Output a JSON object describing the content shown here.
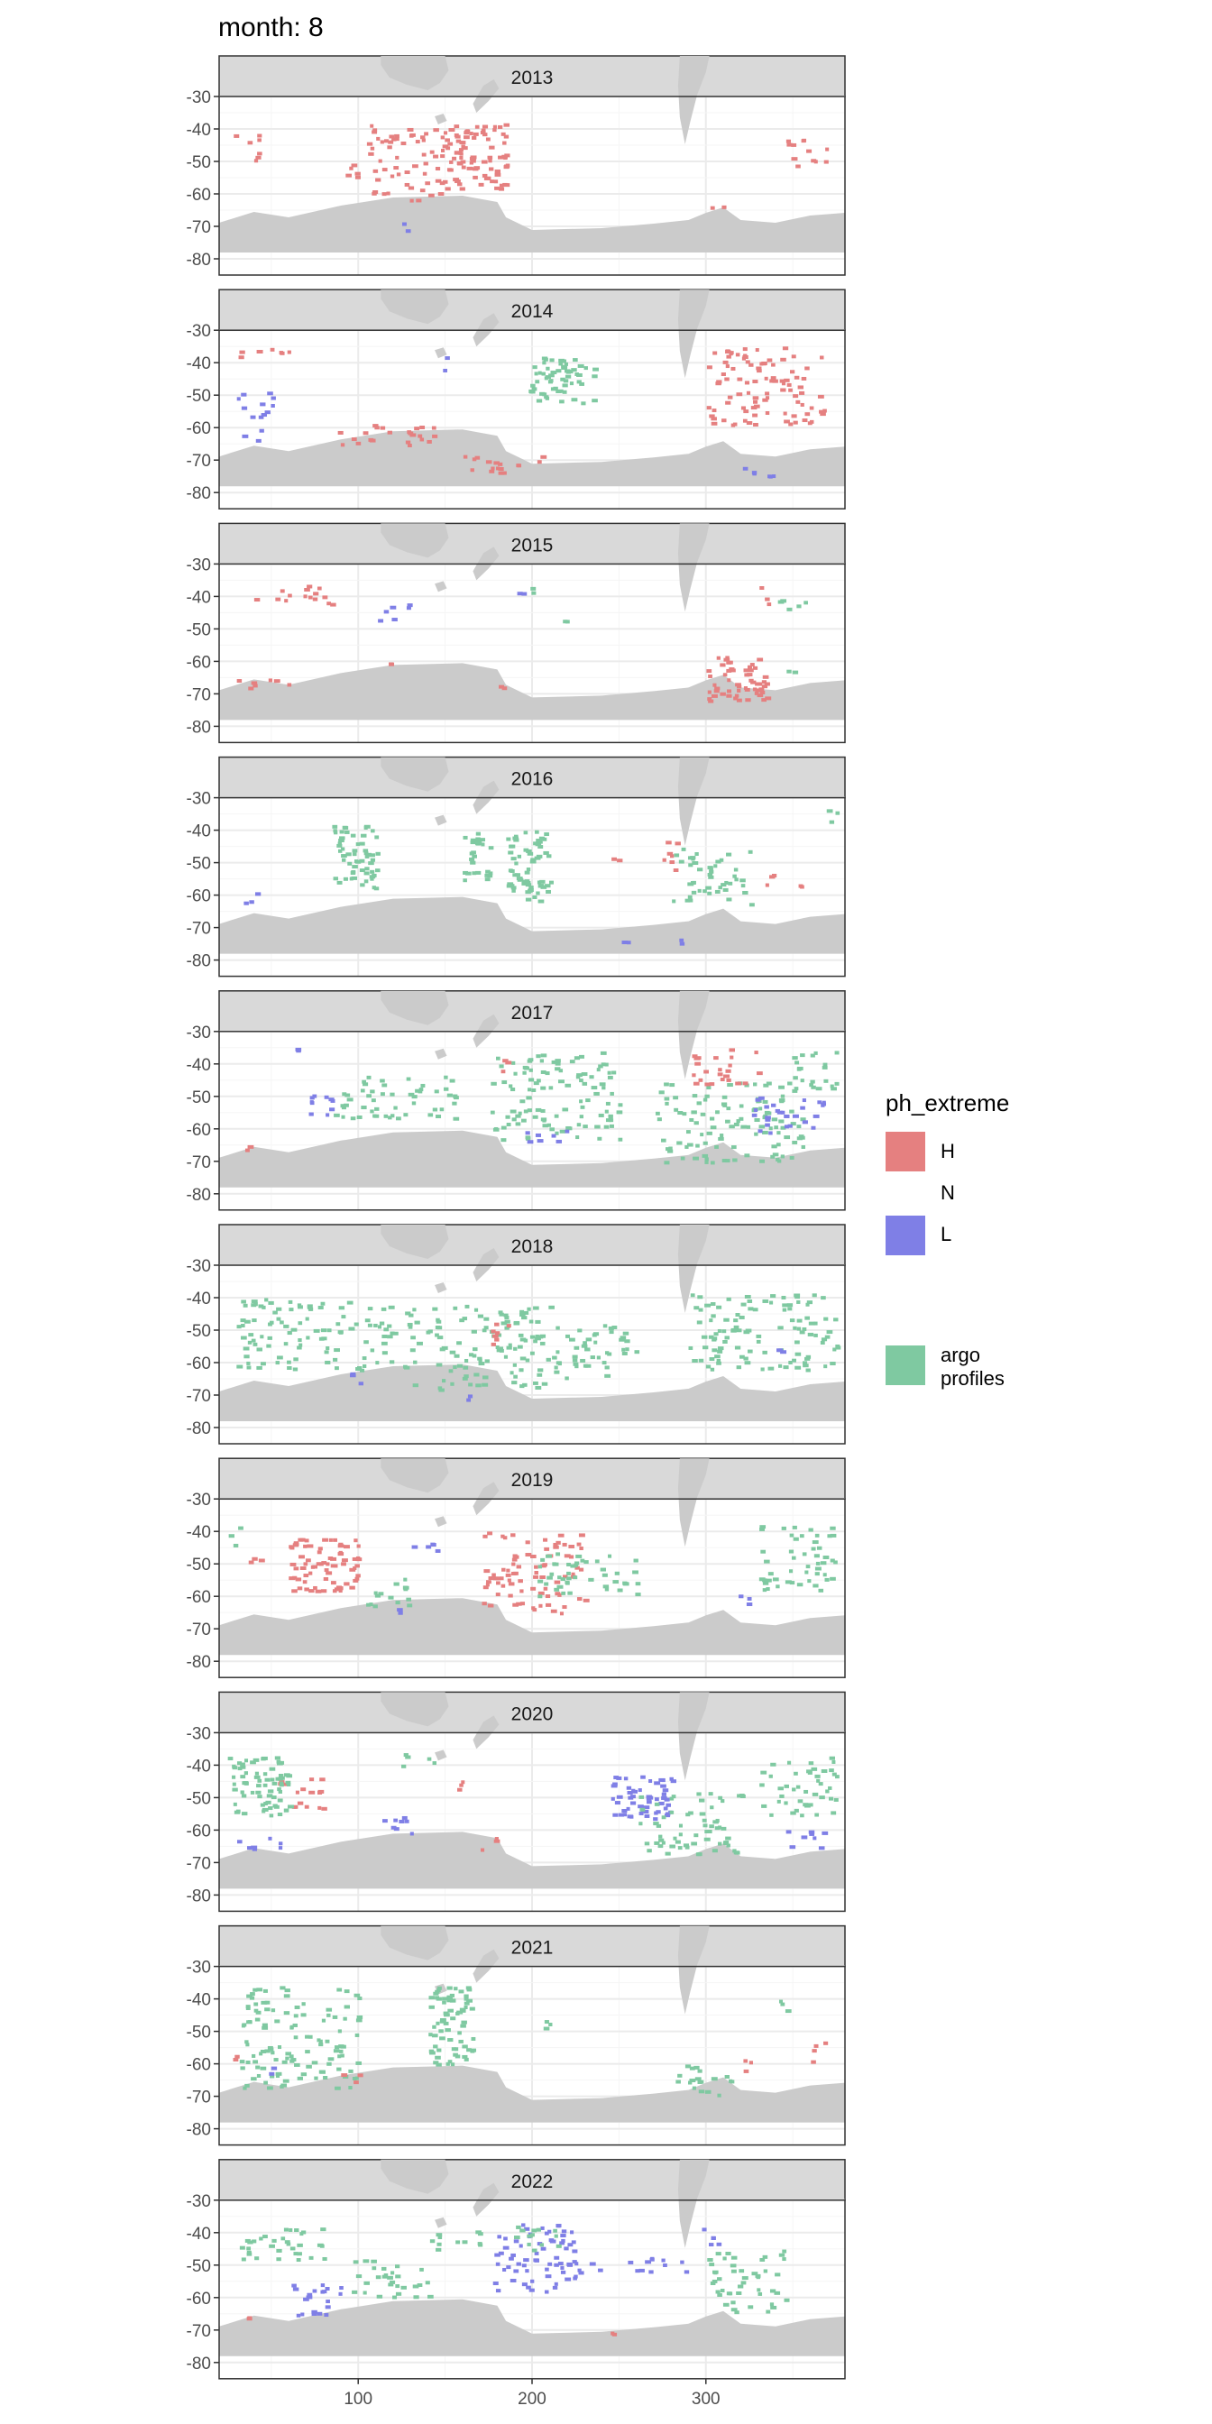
{
  "title": "month: 8",
  "chart_data": {
    "type": "heatmap",
    "title": "month: 8",
    "facets": [
      "2013",
      "2014",
      "2015",
      "2016",
      "2017",
      "2018",
      "2019",
      "2020",
      "2021",
      "2022"
    ],
    "x_ticks": [
      100,
      200,
      300
    ],
    "y_ticks": [
      -30,
      -40,
      -50,
      -60,
      -70,
      -80
    ],
    "xlim": [
      20,
      380
    ],
    "ylim": [
      -85,
      -30
    ],
    "legend": {
      "title": "ph_extreme",
      "placement": "right",
      "entries": [
        {
          "label": "H",
          "color": "#E58080"
        },
        {
          "label": "N",
          "color": null
        },
        {
          "label": "L",
          "color": "#7F7FE6"
        }
      ],
      "argo_label": "argo profiles",
      "argo_color": "#7FC9A1"
    },
    "land_color": "#CBCBCB",
    "regions": [
      [
        {
          "k": "H",
          "x": [
            28,
            42
          ],
          "y": [
            -50,
            -41
          ]
        },
        {
          "k": "H",
          "x": [
            105,
            160
          ],
          "y": [
            -62,
            -37
          ]
        },
        {
          "k": "H",
          "x": [
            155,
            185
          ],
          "y": [
            -58,
            -38
          ]
        },
        {
          "k": "H",
          "x": [
            88,
            105
          ],
          "y": [
            -55,
            -50
          ]
        },
        {
          "k": "H",
          "x": [
            345,
            370
          ],
          "y": [
            -52,
            -43
          ]
        },
        {
          "k": "H",
          "x": [
            300,
            310
          ],
          "y": [
            -64,
            -60
          ]
        },
        {
          "k": "L",
          "x": [
            120,
            128
          ],
          "y": [
            -72,
            -68
          ]
        }
      ],
      [
        {
          "k": "H",
          "x": [
            30,
            70
          ],
          "y": [
            -38,
            -35
          ]
        },
        {
          "k": "H",
          "x": [
            300,
            370
          ],
          "y": [
            -60,
            -35
          ]
        },
        {
          "k": "H",
          "x": [
            85,
            145
          ],
          "y": [
            -65,
            -58
          ]
        },
        {
          "k": "H",
          "x": [
            160,
            205
          ],
          "y": [
            -75,
            -68
          ]
        },
        {
          "k": "L",
          "x": [
            30,
            50
          ],
          "y": [
            -57,
            -47
          ]
        },
        {
          "k": "L",
          "x": [
            32,
            45
          ],
          "y": [
            -64,
            -60
          ]
        },
        {
          "k": "A",
          "x": [
            198,
            235
          ],
          "y": [
            -52,
            -38
          ]
        },
        {
          "k": "L",
          "x": [
            310,
            345
          ],
          "y": [
            -75,
            -72
          ]
        },
        {
          "k": "L",
          "x": [
            145,
            150
          ],
          "y": [
            -42,
            -38
          ]
        }
      ],
      [
        {
          "k": "H",
          "x": [
            40,
            85
          ],
          "y": [
            -42,
            -36
          ]
        },
        {
          "k": "H",
          "x": [
            300,
            335
          ],
          "y": [
            -72,
            -58
          ]
        },
        {
          "k": "H",
          "x": [
            330,
            340
          ],
          "y": [
            -42,
            -36
          ]
        },
        {
          "k": "H",
          "x": [
            30,
            60
          ],
          "y": [
            -69,
            -65
          ]
        },
        {
          "k": "H",
          "x": [
            115,
            120
          ],
          "y": [
            -61,
            -59
          ]
        },
        {
          "k": "H",
          "x": [
            180,
            185
          ],
          "y": [
            -69,
            -66
          ]
        },
        {
          "k": "L",
          "x": [
            108,
            130
          ],
          "y": [
            -47,
            -42
          ]
        },
        {
          "k": "L",
          "x": [
            185,
            195
          ],
          "y": [
            -40,
            -36
          ]
        },
        {
          "k": "A",
          "x": [
            340,
            360
          ],
          "y": [
            -45,
            -40
          ]
        },
        {
          "k": "A",
          "x": [
            195,
            200
          ],
          "y": [
            -40,
            -36
          ]
        },
        {
          "k": "A",
          "x": [
            215,
            220
          ],
          "y": [
            -50,
            -47
          ]
        },
        {
          "k": "A",
          "x": [
            345,
            352
          ],
          "y": [
            -63,
            -58
          ]
        }
      ],
      [
        {
          "k": "A",
          "x": [
            85,
            110
          ],
          "y": [
            -58,
            -38
          ]
        },
        {
          "k": "A",
          "x": [
            160,
            175
          ],
          "y": [
            -55,
            -40
          ]
        },
        {
          "k": "A",
          "x": [
            185,
            210
          ],
          "y": [
            -62,
            -40
          ]
        },
        {
          "k": "A",
          "x": [
            280,
            325
          ],
          "y": [
            -64,
            -45
          ]
        },
        {
          "k": "A",
          "x": [
            365,
            375
          ],
          "y": [
            -37,
            -32
          ]
        },
        {
          "k": "H",
          "x": [
            275,
            287
          ],
          "y": [
            -53,
            -43
          ]
        },
        {
          "k": "H",
          "x": [
            330,
            355
          ],
          "y": [
            -57,
            -53
          ]
        },
        {
          "k": "H",
          "x": [
            245,
            252
          ],
          "y": [
            -52,
            -48
          ]
        },
        {
          "k": "L",
          "x": [
            30,
            50
          ],
          "y": [
            -62,
            -59
          ]
        },
        {
          "k": "L",
          "x": [
            250,
            255
          ],
          "y": [
            -75,
            -72
          ]
        },
        {
          "k": "L",
          "x": [
            280,
            285
          ],
          "y": [
            -75,
            -72
          ]
        }
      ],
      [
        {
          "k": "A",
          "x": [
            85,
            155
          ],
          "y": [
            -57,
            -43
          ]
        },
        {
          "k": "A",
          "x": [
            175,
            250
          ],
          "y": [
            -63,
            -36
          ]
        },
        {
          "k": "A",
          "x": [
            270,
            355
          ],
          "y": [
            -70,
            -45
          ]
        },
        {
          "k": "A",
          "x": [
            345,
            375
          ],
          "y": [
            -48,
            -36
          ]
        },
        {
          "k": "H",
          "x": [
            290,
            330
          ],
          "y": [
            -46,
            -35
          ]
        },
        {
          "k": "H",
          "x": [
            175,
            190
          ],
          "y": [
            -42,
            -38
          ]
        },
        {
          "k": "H",
          "x": [
            35,
            40
          ],
          "y": [
            -67,
            -64
          ]
        },
        {
          "k": "L",
          "x": [
            65,
            85
          ],
          "y": [
            -56,
            -47
          ]
        },
        {
          "k": "L",
          "x": [
            325,
            370
          ],
          "y": [
            -61,
            -50
          ]
        },
        {
          "k": "L",
          "x": [
            195,
            220
          ],
          "y": [
            -65,
            -60
          ]
        },
        {
          "k": "L",
          "x": [
            60,
            65
          ],
          "y": [
            -38,
            -35
          ]
        }
      ],
      [
        {
          "k": "A",
          "x": [
            30,
            120
          ],
          "y": [
            -62,
            -40
          ]
        },
        {
          "k": "A",
          "x": [
            125,
            210
          ],
          "y": [
            -68,
            -42
          ]
        },
        {
          "k": "A",
          "x": [
            210,
            260
          ],
          "y": [
            -65,
            -48
          ]
        },
        {
          "k": "A",
          "x": [
            290,
            375
          ],
          "y": [
            -62,
            -38
          ]
        },
        {
          "k": "H",
          "x": [
            175,
            190
          ],
          "y": [
            -54,
            -46
          ]
        },
        {
          "k": "L",
          "x": [
            90,
            110
          ],
          "y": [
            -66,
            -63
          ]
        },
        {
          "k": "L",
          "x": [
            160,
            170
          ],
          "y": [
            -72,
            -69
          ]
        },
        {
          "k": "L",
          "x": [
            340,
            350
          ],
          "y": [
            -58,
            -55
          ]
        }
      ],
      [
        {
          "k": "H",
          "x": [
            170,
            230
          ],
          "y": [
            -65,
            -40
          ]
        },
        {
          "k": "H",
          "x": [
            60,
            100
          ],
          "y": [
            -58,
            -42
          ]
        },
        {
          "k": "H",
          "x": [
            35,
            45
          ],
          "y": [
            -52,
            -46
          ]
        },
        {
          "k": "A",
          "x": [
            200,
            260
          ],
          "y": [
            -60,
            -46
          ]
        },
        {
          "k": "A",
          "x": [
            330,
            375
          ],
          "y": [
            -58,
            -38
          ]
        },
        {
          "k": "A",
          "x": [
            100,
            130
          ],
          "y": [
            -64,
            -54
          ]
        },
        {
          "k": "A",
          "x": [
            25,
            35
          ],
          "y": [
            -44,
            -38
          ]
        },
        {
          "k": "L",
          "x": [
            130,
            145
          ],
          "y": [
            -46,
            -40
          ]
        },
        {
          "k": "L",
          "x": [
            315,
            335
          ],
          "y": [
            -62,
            -59
          ]
        },
        {
          "k": "L",
          "x": [
            120,
            125
          ],
          "y": [
            -67,
            -63
          ]
        }
      ],
      [
        {
          "k": "L",
          "x": [
            245,
            280
          ],
          "y": [
            -57,
            -43
          ]
        },
        {
          "k": "L",
          "x": [
            110,
            130
          ],
          "y": [
            -61,
            -54
          ]
        },
        {
          "k": "L",
          "x": [
            30,
            60
          ],
          "y": [
            -66,
            -62
          ]
        },
        {
          "k": "L",
          "x": [
            345,
            370
          ],
          "y": [
            -66,
            -60
          ]
        },
        {
          "k": "H",
          "x": [
            50,
            80
          ],
          "y": [
            -53,
            -43
          ]
        },
        {
          "k": "H",
          "x": [
            155,
            165
          ],
          "y": [
            -48,
            -43
          ]
        },
        {
          "k": "H",
          "x": [
            170,
            185
          ],
          "y": [
            -66,
            -62
          ]
        },
        {
          "k": "A",
          "x": [
            25,
            60
          ],
          "y": [
            -55,
            -37
          ]
        },
        {
          "k": "A",
          "x": [
            260,
            320
          ],
          "y": [
            -67,
            -48
          ]
        },
        {
          "k": "A",
          "x": [
            330,
            375
          ],
          "y": [
            -55,
            -37
          ]
        },
        {
          "k": "A",
          "x": [
            120,
            145
          ],
          "y": [
            -40,
            -36
          ]
        }
      ],
      [
        {
          "k": "A",
          "x": [
            30,
            100
          ],
          "y": [
            -67,
            -36
          ]
        },
        {
          "k": "A",
          "x": [
            140,
            165
          ],
          "y": [
            -60,
            -36
          ]
        },
        {
          "k": "A",
          "x": [
            280,
            315
          ],
          "y": [
            -70,
            -60
          ]
        },
        {
          "k": "A",
          "x": [
            205,
            215
          ],
          "y": [
            -50,
            -45
          ]
        },
        {
          "k": "A",
          "x": [
            340,
            350
          ],
          "y": [
            -45,
            -40
          ]
        },
        {
          "k": "H",
          "x": [
            25,
            32
          ],
          "y": [
            -60,
            -55
          ]
        },
        {
          "k": "H",
          "x": [
            85,
            100
          ],
          "y": [
            -66,
            -62
          ]
        },
        {
          "k": "H",
          "x": [
            360,
            372
          ],
          "y": [
            -59,
            -53
          ]
        },
        {
          "k": "H",
          "x": [
            320,
            330
          ],
          "y": [
            -62,
            -57
          ]
        },
        {
          "k": "L",
          "x": [
            45,
            50
          ],
          "y": [
            -63,
            -60
          ]
        }
      ],
      [
        {
          "k": "L",
          "x": [
            175,
            225
          ],
          "y": [
            -58,
            -37
          ]
        },
        {
          "k": "L",
          "x": [
            190,
            240
          ],
          "y": [
            -52,
            -47
          ]
        },
        {
          "k": "L",
          "x": [
            250,
            290
          ],
          "y": [
            -52,
            -47
          ]
        },
        {
          "k": "L",
          "x": [
            60,
            90
          ],
          "y": [
            -67,
            -55
          ]
        },
        {
          "k": "L",
          "x": [
            295,
            310
          ],
          "y": [
            -44,
            -38
          ]
        },
        {
          "k": "A",
          "x": [
            30,
            80
          ],
          "y": [
            -50,
            -38
          ]
        },
        {
          "k": "A",
          "x": [
            95,
            140
          ],
          "y": [
            -60,
            -48
          ]
        },
        {
          "k": "A",
          "x": [
            140,
            170
          ],
          "y": [
            -45,
            -38
          ]
        },
        {
          "k": "A",
          "x": [
            300,
            345
          ],
          "y": [
            -64,
            -45
          ]
        },
        {
          "k": "A",
          "x": [
            185,
            215
          ],
          "y": [
            -45,
            -37
          ]
        },
        {
          "k": "H",
          "x": [
            240,
            255
          ],
          "y": [
            -73,
            -70
          ]
        },
        {
          "k": "H",
          "x": [
            35,
            40
          ],
          "y": [
            -66,
            -63
          ]
        }
      ]
    ]
  }
}
